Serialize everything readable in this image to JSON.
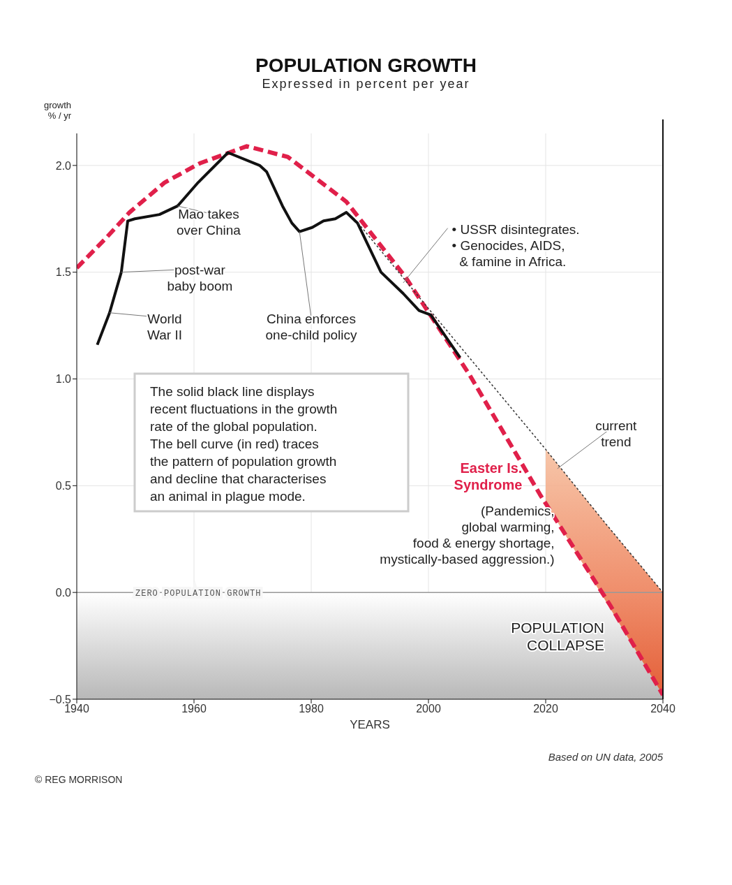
{
  "chart_data": {
    "type": "line",
    "title": "POPULATION GROWTH",
    "subtitle": "Expressed in percent per year",
    "xlabel": "YEARS",
    "ylabel": "growth\n% / yr",
    "xlim": [
      1940,
      2040
    ],
    "xticks": [
      1940,
      1960,
      1980,
      2000,
      2020,
      2040
    ],
    "ylim": [
      -0.5,
      2.15
    ],
    "yticks": [
      {
        "value": -0.5,
        "label": "−0.5"
      },
      {
        "value": 0,
        "label": "0.0"
      },
      {
        "value": 0.5,
        "label": "0.5"
      },
      {
        "value": 1,
        "label": "1.0"
      },
      {
        "value": 1.5,
        "label": "1.5"
      },
      {
        "value": 2,
        "label": "2.0"
      }
    ],
    "grid": true,
    "marker": "none",
    "series": [
      {
        "color": "#e0204a",
        "line_style": "dashed",
        "x": [
          1940,
          1945,
          1949,
          1955,
          1961,
          1969,
          1976,
          1986,
          1996,
          2007,
          2019,
          2031,
          2040
        ],
        "values": [
          1.52,
          1.66,
          1.78,
          1.92,
          2.01,
          2.09,
          2.04,
          1.83,
          1.48,
          1.02,
          0.46,
          -0.06,
          -0.48
        ]
      },
      {
        "color": "#111111",
        "line_style": "solid",
        "x": [
          1943.5,
          1945.6,
          1947.6,
          1948.7,
          1949.9,
          1954.1,
          1957.2,
          1960.7,
          1965.8,
          1971.2,
          1972.4,
          1975.1,
          1976.7,
          1978,
          1980.2,
          1982.1,
          1984.1,
          1986,
          1987.9,
          1991.9,
          1995.7,
          1998.4,
          2000.4,
          2002.4,
          2005.4
        ],
        "values": [
          1.16,
          1.31,
          1.5,
          1.74,
          1.75,
          1.77,
          1.81,
          1.92,
          2.06,
          2.0,
          1.97,
          1.81,
          1.73,
          1.69,
          1.71,
          1.74,
          1.75,
          1.78,
          1.73,
          1.5,
          1.4,
          1.32,
          1.3,
          1.22,
          1.1
        ]
      },
      {
        "color": "#333333",
        "line_style": "dotted",
        "x": [
          1988,
          2000,
          2020,
          2030,
          2040
        ],
        "values": [
          1.73,
          1.33,
          0.67,
          0.33,
          0.0
        ],
        "lower": [
          null,
          null,
          0.42,
          -0.03,
          -0.48
        ],
        "upper": [
          null,
          null,
          0.67,
          0.33,
          0.0
        ]
      }
    ],
    "ref_lines": [
      {
        "axis": "y",
        "value": 0,
        "label": "ZERO POPULATION GROWTH",
        "color": "#999999"
      }
    ],
    "bands": [
      {
        "axis": "y",
        "from": -0.5,
        "to": 0,
        "label": "POPULATION\nCOLLAPSE",
        "color": "#b8b8b8"
      }
    ],
    "annotations": [
      {
        "text": "World\nWar II",
        "x": 1945.6,
        "y": 1.31
      },
      {
        "text": "post-war\nbaby boom",
        "x": 1947.6,
        "y": 1.5
      },
      {
        "text": "Mao takes\nover China",
        "x": 1957.2,
        "y": 1.81
      },
      {
        "text": "China enforces\none-child policy",
        "x": 1978,
        "y": 1.69
      },
      {
        "text": "• USSR disintegrates.\n• Genocides, AIDS,\n  & famine in Africa.",
        "x": 1995.7,
        "y": 1.45
      },
      {
        "text": "current\ntrend",
        "x": 2022,
        "y": 0.58
      },
      "Easter Is.\nSyndrome",
      "(Pandemics,\nglobal warming,\nfood & energy shortage,\nmystically-based aggression.)",
      "The solid black line displays\nrecent fluctuations in the growth\nrate of the global population.\nThe bell curve (in red) traces\nthe pattern of population growth\nand decline that characterises\nan animal in plague mode.",
      "Based on UN data, 2005",
      "© REG MORRISON"
    ]
  }
}
